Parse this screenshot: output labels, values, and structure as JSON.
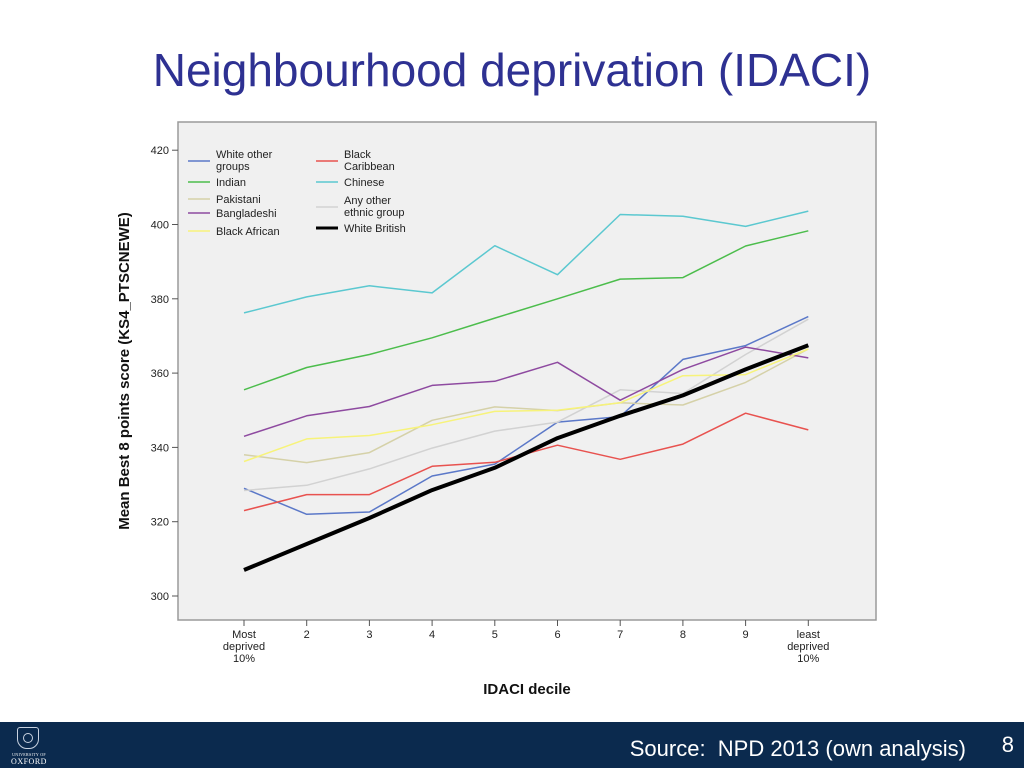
{
  "slide": {
    "title": "Neighbourhood deprivation (IDACI)",
    "source": "Source:  NPD 2013 (own analysis)",
    "page_number": "8",
    "logo_line1": "UNIVERSITY OF",
    "logo_line2": "OXFORD"
  },
  "colors": {
    "title": "#2e3192",
    "footer": "#0b2a4e",
    "plot_background": "#f0f0f0"
  },
  "chart_data": {
    "type": "line",
    "title": "",
    "xlabel": "IDACI decile",
    "ylabel": "Mean Best 8 points score (KS4_PTSCNEWE)",
    "categories": [
      [
        "Most",
        "deprived",
        "10%"
      ],
      [
        "2"
      ],
      [
        "3"
      ],
      [
        "4"
      ],
      [
        "5"
      ],
      [
        "6"
      ],
      [
        "7"
      ],
      [
        "8"
      ],
      [
        "9"
      ],
      [
        "least",
        "deprived",
        "10%"
      ]
    ],
    "ylim": [
      296,
      424
    ],
    "yticks": [
      300,
      320,
      340,
      360,
      380,
      400,
      420
    ],
    "grid": false,
    "legend_position": "top-left, inside plot",
    "series": [
      {
        "name": "White other groups",
        "color": "#5b78c8",
        "width": 1.5,
        "values": [
          329,
          322,
          322.6,
          332.3,
          335.5,
          346.8,
          348.3,
          363.7,
          367.4,
          375.2
        ]
      },
      {
        "name": "Black Caribbean",
        "color": "#e8524f",
        "width": 1.5,
        "values": [
          323,
          327.3,
          327.3,
          334.9,
          336,
          340.6,
          336.8,
          340.9,
          349.2,
          344.7
        ]
      },
      {
        "name": "Indian",
        "color": "#4cbd4c",
        "width": 1.5,
        "values": [
          355.5,
          361.5,
          365,
          369.5,
          374.8,
          380,
          385.3,
          385.7,
          394.2,
          398.3
        ]
      },
      {
        "name": "Chinese",
        "color": "#5bc8d0",
        "width": 1.5,
        "values": [
          376.2,
          380.5,
          383.5,
          381.6,
          394.3,
          386.5,
          402.7,
          402.2,
          399.5,
          403.6
        ]
      },
      {
        "name": "Pakistani",
        "color": "#d5d1a8",
        "width": 1.5,
        "values": [
          338,
          335.9,
          338.6,
          347.3,
          350.9,
          349.9,
          352,
          351.4,
          357.5,
          366.5
        ]
      },
      {
        "name": "Any other ethnic group",
        "color": "#d2d2d2",
        "width": 1.5,
        "values": [
          328.4,
          329.8,
          334.2,
          339.8,
          344.4,
          346.8,
          355.5,
          354.5,
          365,
          374.5
        ]
      },
      {
        "name": "Bangladeshi",
        "color": "#8e4aa0",
        "width": 1.5,
        "values": [
          343,
          348.5,
          351,
          356.7,
          357.8,
          362.9,
          352.7,
          361,
          367,
          364.1
        ]
      },
      {
        "name": "Black African",
        "color": "#f7f37a",
        "width": 1.5,
        "values": [
          336.2,
          342.3,
          343.2,
          346.1,
          349.7,
          350,
          352,
          359.3,
          359.6,
          366.5
        ]
      },
      {
        "name": "White British",
        "color": "#000000",
        "width": 4,
        "values": [
          307,
          314,
          321,
          328.5,
          334.5,
          342.5,
          348.5,
          354,
          361,
          367.5
        ]
      }
    ],
    "legend_items": [
      {
        "label": [
          "White other",
          "groups"
        ],
        "series": 0,
        "column": 0,
        "row": 0
      },
      {
        "label": [
          "Indian"
        ],
        "series": 2,
        "column": 0,
        "row": 1
      },
      {
        "label": [
          "Pakistani"
        ],
        "series": 4,
        "column": 0,
        "row": 2
      },
      {
        "label": [
          "Bangladeshi"
        ],
        "series": 6,
        "column": 0,
        "row": 3
      },
      {
        "label": [
          "Black African"
        ],
        "series": 7,
        "column": 0,
        "row": 4
      },
      {
        "label": [
          "Black",
          "Caribbean"
        ],
        "series": 1,
        "column": 1,
        "row": 0
      },
      {
        "label": [
          "Chinese"
        ],
        "series": 3,
        "column": 1,
        "row": 1
      },
      {
        "label": [
          "Any other",
          "ethnic group"
        ],
        "series": 5,
        "column": 1,
        "row": 2
      },
      {
        "label": [
          "White British"
        ],
        "series": 8,
        "column": 1,
        "row": 3
      }
    ]
  }
}
